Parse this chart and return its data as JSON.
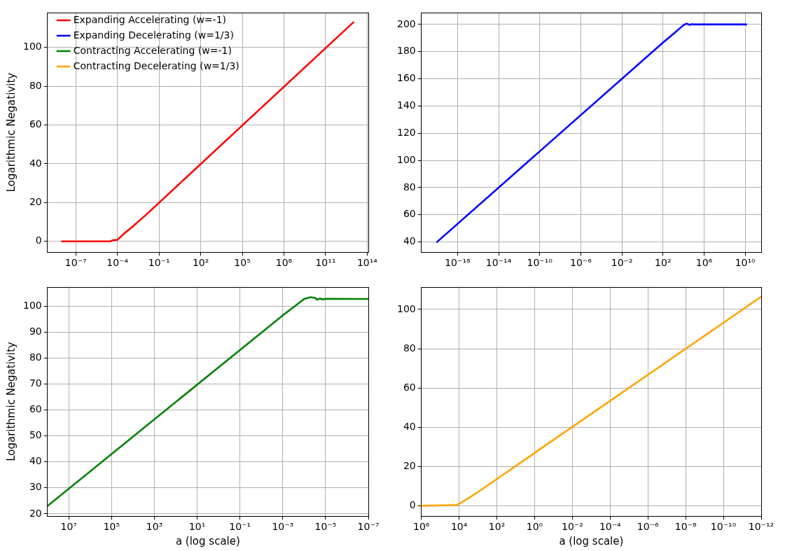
{
  "chart_data": [
    {
      "type": "line",
      "ylabel": "Logarithmic Negativity",
      "log": "x",
      "grid": true,
      "legend": "top left",
      "xlim": [
        9e-10,
        120000000000000.0
      ],
      "xticks": [
        {
          "value": 1e-07,
          "label": "10⁻⁷"
        },
        {
          "value": 0.0001,
          "label": "10⁻⁴"
        },
        {
          "value": 0.1,
          "label": "10⁻¹"
        },
        {
          "value": 100,
          "label": "10²"
        },
        {
          "value": 100000.0,
          "label": "10⁵"
        },
        {
          "value": 100000000.0,
          "label": "10⁸"
        },
        {
          "value": 100000000000.0,
          "label": "10¹¹"
        },
        {
          "value": 100000000000000.0,
          "label": "10¹⁴"
        }
      ],
      "ylim": [
        -5.6,
        118
      ],
      "yticks": [
        0,
        20,
        40,
        60,
        80,
        100
      ],
      "series": [
        {
          "name": "Expanding Accelerating (w=-1)",
          "color": "#ff0000",
          "x": [
            1e-08,
            1e-06,
            3e-05,
            5e-05,
            0.0001,
            0.0003,
            0.001,
            0.01,
            10000000000000.0
          ],
          "values": [
            0,
            0,
            0,
            0.6,
            0.8,
            4,
            7,
            13.3,
            113
          ]
        }
      ]
    },
    {
      "type": "line",
      "log": "x",
      "grid": true,
      "legend": false,
      "xlim": [
        3e-22,
        360000000000.0
      ],
      "xticks": [
        {
          "value": 1e-18,
          "label": "10⁻¹⁸"
        },
        {
          "value": 1e-14,
          "label": "10⁻¹⁴"
        },
        {
          "value": 1e-10,
          "label": "10⁻¹⁰"
        },
        {
          "value": 1e-06,
          "label": "10⁻⁶"
        },
        {
          "value": 0.01,
          "label": "10⁻²"
        },
        {
          "value": 100,
          "label": "10²"
        },
        {
          "value": 1000000.0,
          "label": "10⁶"
        },
        {
          "value": 10000000000.0,
          "label": "10¹⁰"
        }
      ],
      "ylim": [
        32.5,
        208.7
      ],
      "yticks": [
        40,
        60,
        80,
        100,
        120,
        140,
        160,
        180,
        200
      ],
      "series": [
        {
          "name": "Expanding Decelerating (w=1/3)",
          "color": "#0000ff",
          "x": [
            1e-20,
            100,
            1000,
            10000.0,
            20000.0,
            40000.0,
            60000.0,
            100000.0,
            12600000000.0
          ],
          "values": [
            40,
            186.7,
            193,
            199.5,
            200.6,
            199.6,
            200.2,
            200,
            200
          ]
        }
      ]
    },
    {
      "type": "line",
      "ylabel": "Logarithmic Negativity",
      "xlabel": "a (log scale)",
      "log": "x",
      "grid": true,
      "legend": false,
      "xlim": [
        100000000.0,
        1e-07
      ],
      "xticks": [
        {
          "value": 10000000.0,
          "label": "10⁷"
        },
        {
          "value": 100000.0,
          "label": "10⁵"
        },
        {
          "value": 1000,
          "label": "10³"
        },
        {
          "value": 10,
          "label": "10¹"
        },
        {
          "value": 0.1,
          "label": "10⁻¹"
        },
        {
          "value": 0.001,
          "label": "10⁻³"
        },
        {
          "value": 1e-05,
          "label": "10⁻⁵"
        },
        {
          "value": 1e-07,
          "label": "10⁻⁷"
        }
      ],
      "ylim": [
        19.1,
        107.4
      ],
      "yticks": [
        20,
        30,
        40,
        50,
        60,
        70,
        80,
        90,
        100
      ],
      "series": [
        {
          "name": "Contracting Accelerating (w=-1)",
          "color": "#008000",
          "x": [
            100000000.0,
            0.001,
            0.0003,
            0.0001,
            5e-05,
            3e-05,
            2.5e-05,
            1.8e-05,
            1.4e-05,
            1e-05,
            1e-07
          ],
          "values": [
            23,
            96.5,
            99.8,
            102.8,
            103.5,
            103.2,
            102.5,
            103,
            102.6,
            102.9,
            102.8
          ]
        }
      ]
    },
    {
      "type": "line",
      "xlabel": "a (log scale)",
      "log": "x",
      "grid": true,
      "legend": false,
      "xlim": [
        1000000.0,
        1e-12
      ],
      "xticks": [
        {
          "value": 1000000.0,
          "label": "10⁶"
        },
        {
          "value": 10000.0,
          "label": "10⁴"
        },
        {
          "value": 100,
          "label": "10²"
        },
        {
          "value": 1,
          "label": "10⁰"
        },
        {
          "value": 0.01,
          "label": "10⁻²"
        },
        {
          "value": 0.0001,
          "label": "10⁻⁴"
        },
        {
          "value": 1e-06,
          "label": "10⁻⁶"
        },
        {
          "value": 1e-08,
          "label": "10⁻⁸"
        },
        {
          "value": 1e-10,
          "label": "10⁻¹⁰"
        },
        {
          "value": 1e-12,
          "label": "10⁻¹²"
        }
      ],
      "ylim": [
        -5.3,
        111.4
      ],
      "yticks": [
        0,
        20,
        40,
        60,
        80,
        100
      ],
      "series": [
        {
          "name": "Contracting Decelerating (w=1/3)",
          "color": "#ffa500",
          "x": [
            1000000.0,
            30000.0,
            15000.0,
            10000.0,
            3000,
            1000,
            1e-12
          ],
          "values": [
            0,
            0.3,
            0.2,
            1,
            4,
            7,
            106.5
          ]
        }
      ]
    }
  ]
}
